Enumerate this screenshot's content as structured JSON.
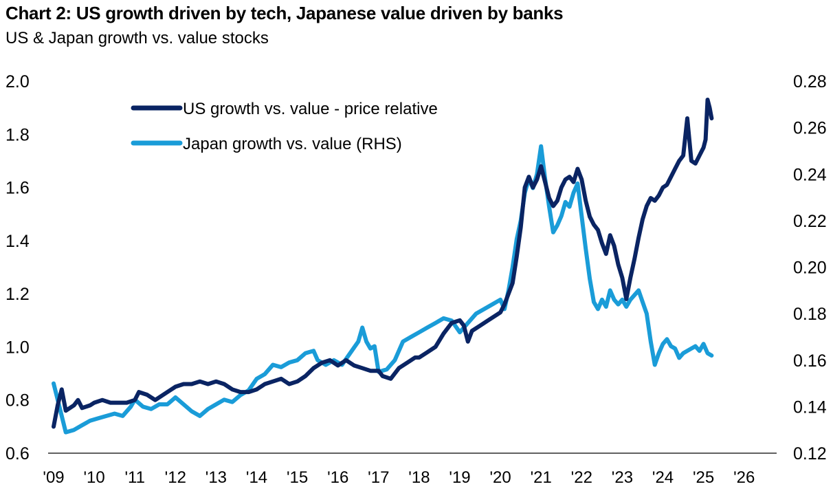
{
  "chart_data": {
    "type": "line",
    "title": "Chart 2: US growth driven by tech, Japanese value driven by banks",
    "subtitle": "US & Japan growth vs. value stocks",
    "x_tick_labels": [
      "'09",
      "'10",
      "'11",
      "'12",
      "'13",
      "'14",
      "'15",
      "'16",
      "'17",
      "'18",
      "'19",
      "'20",
      "'21",
      "'22",
      "'23",
      "'24",
      "'25",
      "'26"
    ],
    "xlim": [
      2009,
      2026.8
    ],
    "y_left": {
      "ylim": [
        0.6,
        2.0
      ],
      "ticks": [
        0.6,
        0.8,
        1.0,
        1.2,
        1.4,
        1.6,
        1.8,
        2.0
      ],
      "tick_labels": [
        "0.6",
        "0.8",
        "1.0",
        "1.2",
        "1.4",
        "1.6",
        "1.8",
        "2.0"
      ]
    },
    "y_right": {
      "ylim": [
        0.12,
        0.28
      ],
      "ticks": [
        0.12,
        0.14,
        0.16,
        0.18,
        0.2,
        0.22,
        0.24,
        0.26,
        0.28
      ],
      "tick_labels": [
        "0.12",
        "0.14",
        "0.16",
        "0.18",
        "0.20",
        "0.22",
        "0.24",
        "0.26",
        "0.28"
      ]
    },
    "legend_position": "top-left",
    "grid": false,
    "series": [
      {
        "name": "US growth vs. value - price relative",
        "axis": "left",
        "color": "#0a2463",
        "points": [
          [
            2009.0,
            0.7
          ],
          [
            2009.1,
            0.78
          ],
          [
            2009.2,
            0.84
          ],
          [
            2009.3,
            0.76
          ],
          [
            2009.5,
            0.78
          ],
          [
            2009.6,
            0.8
          ],
          [
            2009.7,
            0.77
          ],
          [
            2009.9,
            0.78
          ],
          [
            2010.0,
            0.79
          ],
          [
            2010.2,
            0.8
          ],
          [
            2010.4,
            0.79
          ],
          [
            2010.6,
            0.79
          ],
          [
            2010.8,
            0.79
          ],
          [
            2011.0,
            0.8
          ],
          [
            2011.1,
            0.83
          ],
          [
            2011.3,
            0.82
          ],
          [
            2011.5,
            0.8
          ],
          [
            2011.7,
            0.82
          ],
          [
            2011.9,
            0.84
          ],
          [
            2012.0,
            0.85
          ],
          [
            2012.2,
            0.86
          ],
          [
            2012.4,
            0.86
          ],
          [
            2012.6,
            0.87
          ],
          [
            2012.8,
            0.86
          ],
          [
            2013.0,
            0.87
          ],
          [
            2013.2,
            0.86
          ],
          [
            2013.4,
            0.84
          ],
          [
            2013.6,
            0.83
          ],
          [
            2013.8,
            0.83
          ],
          [
            2014.0,
            0.84
          ],
          [
            2014.2,
            0.86
          ],
          [
            2014.4,
            0.87
          ],
          [
            2014.6,
            0.88
          ],
          [
            2014.8,
            0.86
          ],
          [
            2015.0,
            0.87
          ],
          [
            2015.2,
            0.89
          ],
          [
            2015.4,
            0.92
          ],
          [
            2015.6,
            0.94
          ],
          [
            2015.8,
            0.95
          ],
          [
            2016.0,
            0.93
          ],
          [
            2016.2,
            0.95
          ],
          [
            2016.4,
            0.93
          ],
          [
            2016.6,
            0.92
          ],
          [
            2016.8,
            0.91
          ],
          [
            2017.0,
            0.91
          ],
          [
            2017.1,
            0.89
          ],
          [
            2017.3,
            0.88
          ],
          [
            2017.5,
            0.92
          ],
          [
            2017.7,
            0.94
          ],
          [
            2017.9,
            0.96
          ],
          [
            2018.0,
            0.96
          ],
          [
            2018.2,
            0.98
          ],
          [
            2018.4,
            1.0
          ],
          [
            2018.6,
            1.05
          ],
          [
            2018.8,
            1.09
          ],
          [
            2019.0,
            1.1
          ],
          [
            2019.1,
            1.08
          ],
          [
            2019.2,
            1.02
          ],
          [
            2019.3,
            1.06
          ],
          [
            2019.5,
            1.08
          ],
          [
            2019.7,
            1.1
          ],
          [
            2019.9,
            1.12
          ],
          [
            2020.0,
            1.13
          ],
          [
            2020.1,
            1.16
          ],
          [
            2020.3,
            1.24
          ],
          [
            2020.4,
            1.34
          ],
          [
            2020.5,
            1.45
          ],
          [
            2020.6,
            1.6
          ],
          [
            2020.7,
            1.64
          ],
          [
            2020.8,
            1.6
          ],
          [
            2020.9,
            1.63
          ],
          [
            2021.0,
            1.68
          ],
          [
            2021.1,
            1.62
          ],
          [
            2021.2,
            1.56
          ],
          [
            2021.3,
            1.53
          ],
          [
            2021.4,
            1.55
          ],
          [
            2021.5,
            1.6
          ],
          [
            2021.6,
            1.63
          ],
          [
            2021.7,
            1.64
          ],
          [
            2021.8,
            1.62
          ],
          [
            2021.9,
            1.67
          ],
          [
            2022.0,
            1.63
          ],
          [
            2022.1,
            1.55
          ],
          [
            2022.2,
            1.49
          ],
          [
            2022.3,
            1.46
          ],
          [
            2022.4,
            1.44
          ],
          [
            2022.5,
            1.39
          ],
          [
            2022.6,
            1.35
          ],
          [
            2022.7,
            1.42
          ],
          [
            2022.8,
            1.38
          ],
          [
            2022.9,
            1.31
          ],
          [
            2023.0,
            1.26
          ],
          [
            2023.1,
            1.18
          ],
          [
            2023.2,
            1.26
          ],
          [
            2023.3,
            1.33
          ],
          [
            2023.4,
            1.41
          ],
          [
            2023.5,
            1.48
          ],
          [
            2023.6,
            1.53
          ],
          [
            2023.7,
            1.56
          ],
          [
            2023.8,
            1.55
          ],
          [
            2023.9,
            1.57
          ],
          [
            2024.0,
            1.6
          ],
          [
            2024.1,
            1.61
          ],
          [
            2024.2,
            1.64
          ],
          [
            2024.3,
            1.67
          ],
          [
            2024.4,
            1.7
          ],
          [
            2024.5,
            1.72
          ],
          [
            2024.6,
            1.86
          ],
          [
            2024.7,
            1.7
          ],
          [
            2024.8,
            1.69
          ],
          [
            2024.9,
            1.72
          ],
          [
            2025.0,
            1.75
          ],
          [
            2025.05,
            1.78
          ],
          [
            2025.1,
            1.93
          ],
          [
            2025.15,
            1.9
          ],
          [
            2025.2,
            1.86
          ]
        ]
      },
      {
        "name": "Japan growth vs. value (RHS)",
        "axis": "right",
        "color": "#1a9cd8",
        "points": [
          [
            2009.0,
            0.15
          ],
          [
            2009.1,
            0.143
          ],
          [
            2009.2,
            0.136
          ],
          [
            2009.3,
            0.129
          ],
          [
            2009.5,
            0.13
          ],
          [
            2009.7,
            0.132
          ],
          [
            2009.9,
            0.134
          ],
          [
            2010.1,
            0.135
          ],
          [
            2010.3,
            0.136
          ],
          [
            2010.5,
            0.137
          ],
          [
            2010.7,
            0.136
          ],
          [
            2010.9,
            0.14
          ],
          [
            2011.0,
            0.143
          ],
          [
            2011.2,
            0.14
          ],
          [
            2011.4,
            0.139
          ],
          [
            2011.6,
            0.141
          ],
          [
            2011.8,
            0.141
          ],
          [
            2012.0,
            0.144
          ],
          [
            2012.2,
            0.141
          ],
          [
            2012.4,
            0.138
          ],
          [
            2012.6,
            0.136
          ],
          [
            2012.8,
            0.139
          ],
          [
            2013.0,
            0.141
          ],
          [
            2013.2,
            0.143
          ],
          [
            2013.4,
            0.142
          ],
          [
            2013.6,
            0.145
          ],
          [
            2013.8,
            0.147
          ],
          [
            2014.0,
            0.152
          ],
          [
            2014.2,
            0.154
          ],
          [
            2014.4,
            0.158
          ],
          [
            2014.6,
            0.157
          ],
          [
            2014.8,
            0.159
          ],
          [
            2015.0,
            0.16
          ],
          [
            2015.2,
            0.163
          ],
          [
            2015.4,
            0.164
          ],
          [
            2015.5,
            0.16
          ],
          [
            2015.7,
            0.158
          ],
          [
            2015.9,
            0.16
          ],
          [
            2016.1,
            0.158
          ],
          [
            2016.3,
            0.163
          ],
          [
            2016.5,
            0.168
          ],
          [
            2016.6,
            0.174
          ],
          [
            2016.7,
            0.168
          ],
          [
            2016.8,
            0.165
          ],
          [
            2016.9,
            0.166
          ],
          [
            2017.0,
            0.155
          ],
          [
            2017.2,
            0.156
          ],
          [
            2017.4,
            0.16
          ],
          [
            2017.6,
            0.168
          ],
          [
            2017.8,
            0.17
          ],
          [
            2018.0,
            0.172
          ],
          [
            2018.2,
            0.174
          ],
          [
            2018.4,
            0.176
          ],
          [
            2018.6,
            0.178
          ],
          [
            2018.8,
            0.177
          ],
          [
            2019.0,
            0.172
          ],
          [
            2019.2,
            0.176
          ],
          [
            2019.4,
            0.18
          ],
          [
            2019.6,
            0.182
          ],
          [
            2019.8,
            0.184
          ],
          [
            2020.0,
            0.186
          ],
          [
            2020.1,
            0.182
          ],
          [
            2020.2,
            0.19
          ],
          [
            2020.3,
            0.2
          ],
          [
            2020.4,
            0.212
          ],
          [
            2020.5,
            0.22
          ],
          [
            2020.6,
            0.232
          ],
          [
            2020.7,
            0.238
          ],
          [
            2020.8,
            0.234
          ],
          [
            2020.9,
            0.24
          ],
          [
            2021.0,
            0.252
          ],
          [
            2021.1,
            0.238
          ],
          [
            2021.2,
            0.226
          ],
          [
            2021.3,
            0.215
          ],
          [
            2021.4,
            0.218
          ],
          [
            2021.5,
            0.222
          ],
          [
            2021.6,
            0.228
          ],
          [
            2021.7,
            0.226
          ],
          [
            2021.8,
            0.232
          ],
          [
            2021.9,
            0.236
          ],
          [
            2022.0,
            0.222
          ],
          [
            2022.1,
            0.208
          ],
          [
            2022.2,
            0.195
          ],
          [
            2022.3,
            0.185
          ],
          [
            2022.4,
            0.182
          ],
          [
            2022.5,
            0.186
          ],
          [
            2022.6,
            0.183
          ],
          [
            2022.7,
            0.19
          ],
          [
            2022.8,
            0.186
          ],
          [
            2022.9,
            0.184
          ],
          [
            2023.0,
            0.186
          ],
          [
            2023.1,
            0.183
          ],
          [
            2023.2,
            0.186
          ],
          [
            2023.3,
            0.188
          ],
          [
            2023.4,
            0.19
          ],
          [
            2023.5,
            0.185
          ],
          [
            2023.6,
            0.18
          ],
          [
            2023.7,
            0.168
          ],
          [
            2023.8,
            0.158
          ],
          [
            2023.9,
            0.163
          ],
          [
            2024.0,
            0.167
          ],
          [
            2024.1,
            0.169
          ],
          [
            2024.2,
            0.166
          ],
          [
            2024.3,
            0.165
          ],
          [
            2024.4,
            0.161
          ],
          [
            2024.5,
            0.163
          ],
          [
            2024.6,
            0.164
          ],
          [
            2024.7,
            0.165
          ],
          [
            2024.8,
            0.166
          ],
          [
            2024.9,
            0.164
          ],
          [
            2025.0,
            0.167
          ],
          [
            2025.1,
            0.163
          ],
          [
            2025.2,
            0.162
          ]
        ]
      }
    ]
  }
}
